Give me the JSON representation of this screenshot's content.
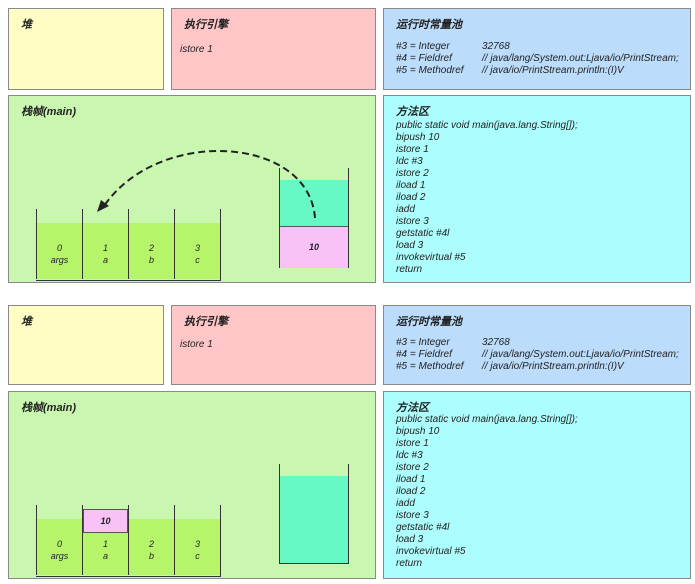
{
  "panels": [
    {
      "heap": {
        "title": "堆"
      },
      "exec": {
        "title": "执行引擎",
        "instruction": "istore 1"
      },
      "pool": {
        "title": "运行时常量池",
        "rows": [
          {
            "ref": "#3 = Integer",
            "value": "32768"
          },
          {
            "ref": "#4 = Fieldref",
            "value": "// java/lang/System.out:Ljava/io/PrintStream;"
          },
          {
            "ref": "#5 = Methodref",
            "value": "// java/io/PrintStream.println:(I)V"
          }
        ]
      },
      "stack": {
        "title": "栈帧(main)",
        "slots": [
          {
            "index": "0",
            "name": "args"
          },
          {
            "index": "1",
            "name": "a"
          },
          {
            "index": "2",
            "name": "b"
          },
          {
            "index": "3",
            "name": "c"
          }
        ],
        "operand_value": "10"
      },
      "method": {
        "title": "方法区",
        "code": [
          "public static void main(java.lang.String[]);",
          "bipush 10",
          "istore 1",
          "ldc #3",
          "istore 2",
          "iload 1",
          "iload 2",
          "iadd",
          "istore 3",
          "getstatic #4l",
          "load 3",
          "invokevirtual #5",
          "return"
        ]
      }
    },
    {
      "heap": {
        "title": "堆"
      },
      "exec": {
        "title": "执行引擎",
        "instruction": "istore 1"
      },
      "pool": {
        "title": "运行时常量池",
        "rows": [
          {
            "ref": "#3 = Integer",
            "value": "32768"
          },
          {
            "ref": "#4 = Fieldref",
            "value": "// java/lang/System.out:Ljava/io/PrintStream;"
          },
          {
            "ref": "#5 = Methodref",
            "value": "// java/io/PrintStream.println:(I)V"
          }
        ]
      },
      "stack": {
        "title": "栈帧(main)",
        "slots": [
          {
            "index": "0",
            "name": "args"
          },
          {
            "index": "1",
            "name": "a"
          },
          {
            "index": "2",
            "name": "b"
          },
          {
            "index": "3",
            "name": "c"
          }
        ],
        "slot_value": "10"
      },
      "method": {
        "title": "方法区",
        "code": [
          "public static void main(java.lang.String[]);",
          "bipush 10",
          "istore 1",
          "ldc #3",
          "istore 2",
          "iload 1",
          "iload 2",
          "iadd",
          "istore 3",
          "getstatic #4l",
          "load 3",
          "invokevirtual #5",
          "return"
        ]
      }
    }
  ]
}
